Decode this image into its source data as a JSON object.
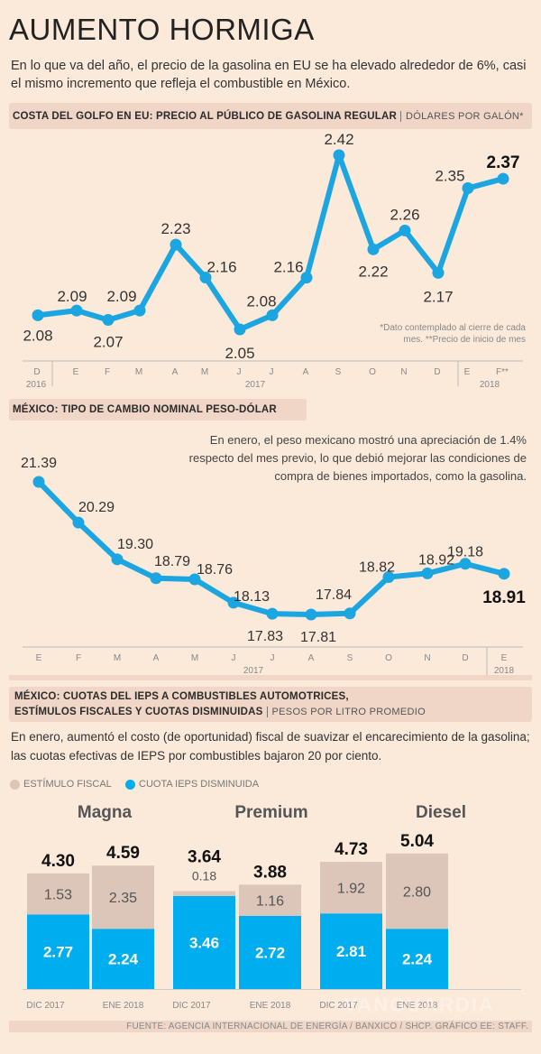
{
  "title": "AUMENTO HORMIGA",
  "subtitle": "En lo que va del año, el precio de la gasolina en EU se ha elevado alrededor de 6%, casi el mismo incremento que refleja el combustible en México.",
  "colors": {
    "line": "#1ba5e1",
    "estimulo": "#dcc5b9",
    "cuota": "#00aeef",
    "background": "#fbe9da",
    "band": "#efd6c6"
  },
  "chart_data": [
    {
      "type": "line",
      "title": "COSTA DEL GOLFO EN EU: PRECIO AL PÚBLICO DE GASOLINA REGULAR",
      "unit": "DÓLARES POR GALÓN*",
      "categories": [
        "D",
        "E",
        "F",
        "M",
        "A",
        "M",
        "J",
        "J",
        "A",
        "S",
        "O",
        "N",
        "D",
        "E",
        "F**"
      ],
      "year_labels": [
        "2016",
        "2017",
        "2018"
      ],
      "values": [
        2.08,
        2.09,
        2.07,
        2.09,
        2.23,
        2.16,
        2.05,
        2.08,
        2.16,
        2.42,
        2.22,
        2.26,
        2.17,
        2.35,
        2.37
      ],
      "labels": [
        "2.08",
        "2.09",
        "2.07",
        "2.09",
        "2.23",
        "2.16",
        "2.05",
        "2.08",
        "2.16",
        "2.42",
        "2.22",
        "2.26",
        "2.17",
        "2.35",
        "2.37"
      ],
      "note": "*Dato contemplado al cierre de cada mes. **Precio de inicio de mes",
      "grid": false
    },
    {
      "type": "line",
      "title": "MÉXICO: TIPO DE CAMBIO NOMINAL PESO-DÓLAR",
      "categories": [
        "E",
        "F",
        "M",
        "A",
        "M",
        "J",
        "J",
        "A",
        "S",
        "O",
        "N",
        "D",
        "E"
      ],
      "year_labels": [
        "2017",
        "2018"
      ],
      "values": [
        21.39,
        20.29,
        19.3,
        18.79,
        18.76,
        18.13,
        17.83,
        17.81,
        17.84,
        18.82,
        18.92,
        19.18,
        18.91
      ],
      "labels": [
        "21.39",
        "20.29",
        "19.30",
        "18.79",
        "18.76",
        "18.13",
        "17.83",
        "17.81",
        "17.84",
        "18.82",
        "18.92",
        "19.18",
        "18.91"
      ],
      "annotation": "En enero, el peso mexicano mostró una apreciación de 1.4% respecto del mes previo, lo que debió mejorar las condiciones de compra de bienes importados, como la gasolina.",
      "grid": false
    },
    {
      "type": "bar",
      "stacked": true,
      "title_line1": "MÉXICO: CUOTAS DEL IEPS A COMBUSTIBLES AUTOMOTRICES,",
      "title_line2": "ESTÍMULOS FISCALES Y CUOTAS DISMINUIDAS",
      "unit": "PESOS POR LITRO PROMEDIO",
      "description": "En enero, aumentó el costo (de oportunidad) fiscal de suavizar el encarecimiento de la gasolina; las cuotas efectivas de IEPS por combustibles bajaron 20 por ciento.",
      "legend": [
        "ESTÍMULO FISCAL",
        "CUOTA IEPS DISMINUIDA"
      ],
      "groups": [
        {
          "name": "Magna",
          "bars": [
            {
              "period": "DIC 2017",
              "total": "4.30",
              "estimulo": 1.53,
              "cuota": 2.77,
              "estimulo_label": "1.53",
              "cuota_label": "2.77"
            },
            {
              "period": "ENE 2018",
              "total": "4.59",
              "estimulo": 2.35,
              "cuota": 2.24,
              "estimulo_label": "2.35",
              "cuota_label": "2.24"
            }
          ]
        },
        {
          "name": "Premium",
          "bars": [
            {
              "period": "DIC 2017",
              "total": "3.64",
              "estimulo": 0.18,
              "cuota": 3.46,
              "estimulo_label": "0.18",
              "cuota_label": "3.46"
            },
            {
              "period": "ENE 2018",
              "total": "3.88",
              "estimulo": 1.16,
              "cuota": 2.72,
              "estimulo_label": "1.16",
              "cuota_label": "2.72"
            }
          ]
        },
        {
          "name": "Diesel",
          "bars": [
            {
              "period": "DIC 2017",
              "total": "4.73",
              "estimulo": 1.92,
              "cuota": 2.81,
              "estimulo_label": "1.92",
              "cuota_label": "2.81"
            },
            {
              "period": "ENE 2018",
              "total": "5.04",
              "estimulo": 2.8,
              "cuota": 2.24,
              "estimulo_label": "2.80",
              "cuota_label": "2.24"
            }
          ]
        }
      ]
    }
  ],
  "footer": "FUENTE: AGENCIA INTERNACIONAL DE ENERGÍA / BANXICO / SHCP.  GRÁFICO EE: STAFF.",
  "watermark": "VANGUARDIA"
}
